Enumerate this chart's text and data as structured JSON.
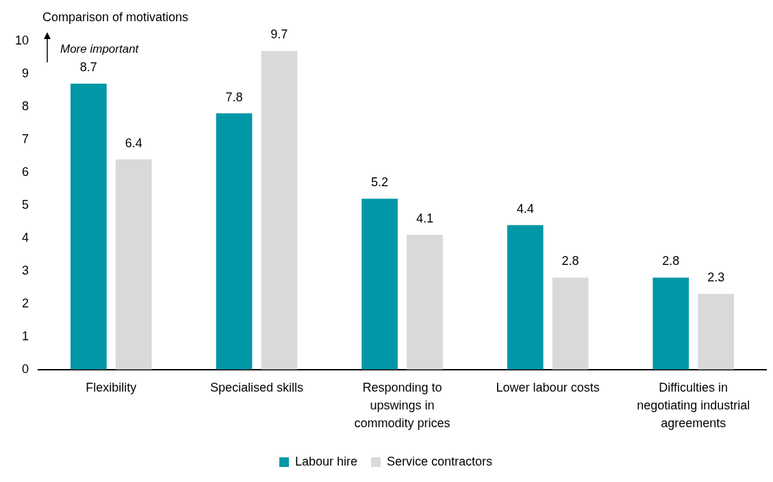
{
  "chart_data": {
    "type": "bar",
    "ylabel": "Comparison of motivations",
    "annotations": [
      "More important"
    ],
    "categories": [
      "Flexibility",
      "Specialised skills",
      "Responding to upswings in commodity prices",
      "Lower labour costs",
      "Difficulties in negotiating industrial agreements"
    ],
    "series": [
      {
        "name": "Labour hire",
        "color": "#0097a7",
        "values": [
          8.7,
          7.8,
          5.2,
          4.4,
          2.8
        ]
      },
      {
        "name": "Service contractors",
        "color": "#d9d9d9",
        "values": [
          6.4,
          9.7,
          4.1,
          2.8,
          2.3
        ]
      }
    ],
    "ylim": [
      0,
      10
    ],
    "yticks": [
      0,
      1,
      2,
      3,
      4,
      5,
      6,
      7,
      8,
      9,
      10
    ],
    "grid": false,
    "legend": "bottom",
    "data_labels": true
  }
}
